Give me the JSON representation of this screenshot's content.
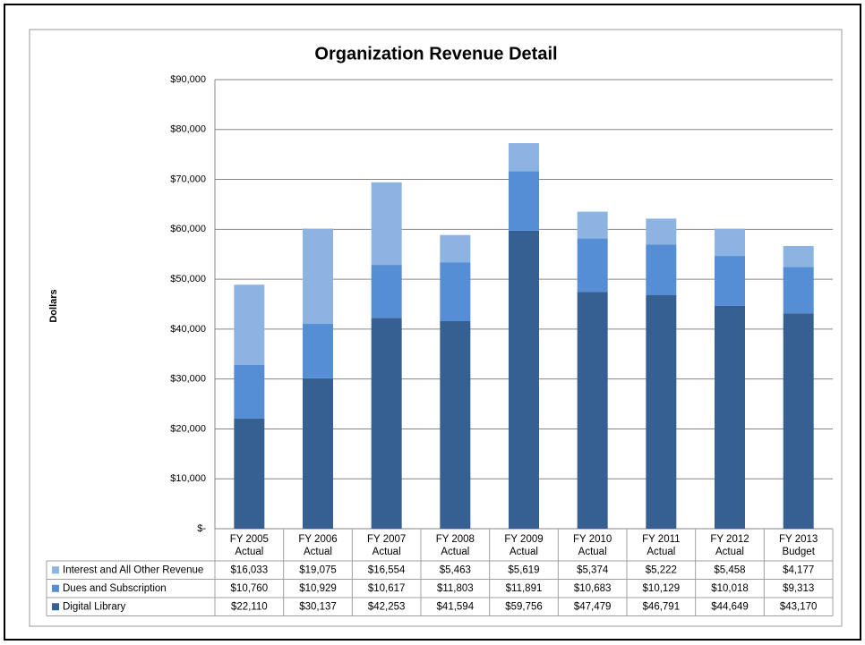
{
  "chart_data": {
    "type": "stacked_bar",
    "title": "Organization Revenue Detail",
    "y_label": "Dollars",
    "categories": [
      "FY 2005 Actual",
      "FY 2006 Actual",
      "FY 2007 Actual",
      "FY 2008 Actual",
      "FY 2009 Actual",
      "FY 2010 Actual",
      "FY 2011 Actual",
      "FY 2012 Actual",
      "FY 2013 Budget"
    ],
    "series": [
      {
        "name": "Digital Library",
        "color": "#376092",
        "values": [
          22110,
          30137,
          42253,
          41594,
          59756,
          47479,
          46791,
          44649,
          43170
        ],
        "value_labels": [
          "$22,110",
          "$30,137",
          "$42,253",
          "$41,594",
          "$59,756",
          "$47,479",
          "$46,791",
          "$44,649",
          "$43,170"
        ]
      },
      {
        "name": "Dues and Subscription",
        "color": "#558ed5",
        "values": [
          10760,
          10929,
          10617,
          11803,
          11891,
          10683,
          10129,
          10018,
          9313
        ],
        "value_labels": [
          "$10,760",
          "$10,929",
          "$10,617",
          "$11,803",
          "$11,891",
          "$10,683",
          "$10,129",
          "$10,018",
          "$9,313"
        ]
      },
      {
        "name": "Interest and All Other Revenue",
        "color": "#8db3e2",
        "values": [
          16033,
          19075,
          16554,
          5463,
          5619,
          5374,
          5222,
          5458,
          4177
        ],
        "value_labels": [
          "$16,033",
          "$19,075",
          "$16,554",
          "$5,463",
          "$5,619",
          "$5,374",
          "$5,222",
          "$5,458",
          "$4,177"
        ]
      }
    ],
    "ylim": [
      0,
      90000
    ],
    "yticks": [
      {
        "value": 0,
        "label": "$-"
      },
      {
        "value": 10000,
        "label": "$10,000"
      },
      {
        "value": 20000,
        "label": "$20,000"
      },
      {
        "value": 30000,
        "label": "$30,000"
      },
      {
        "value": 40000,
        "label": "$40,000"
      },
      {
        "value": 50000,
        "label": "$50,000"
      },
      {
        "value": 60000,
        "label": "$60,000"
      },
      {
        "value": 70000,
        "label": "$70,000"
      },
      {
        "value": 80000,
        "label": "$80,000"
      },
      {
        "value": 90000,
        "label": "$90,000"
      }
    ],
    "grid": true
  }
}
